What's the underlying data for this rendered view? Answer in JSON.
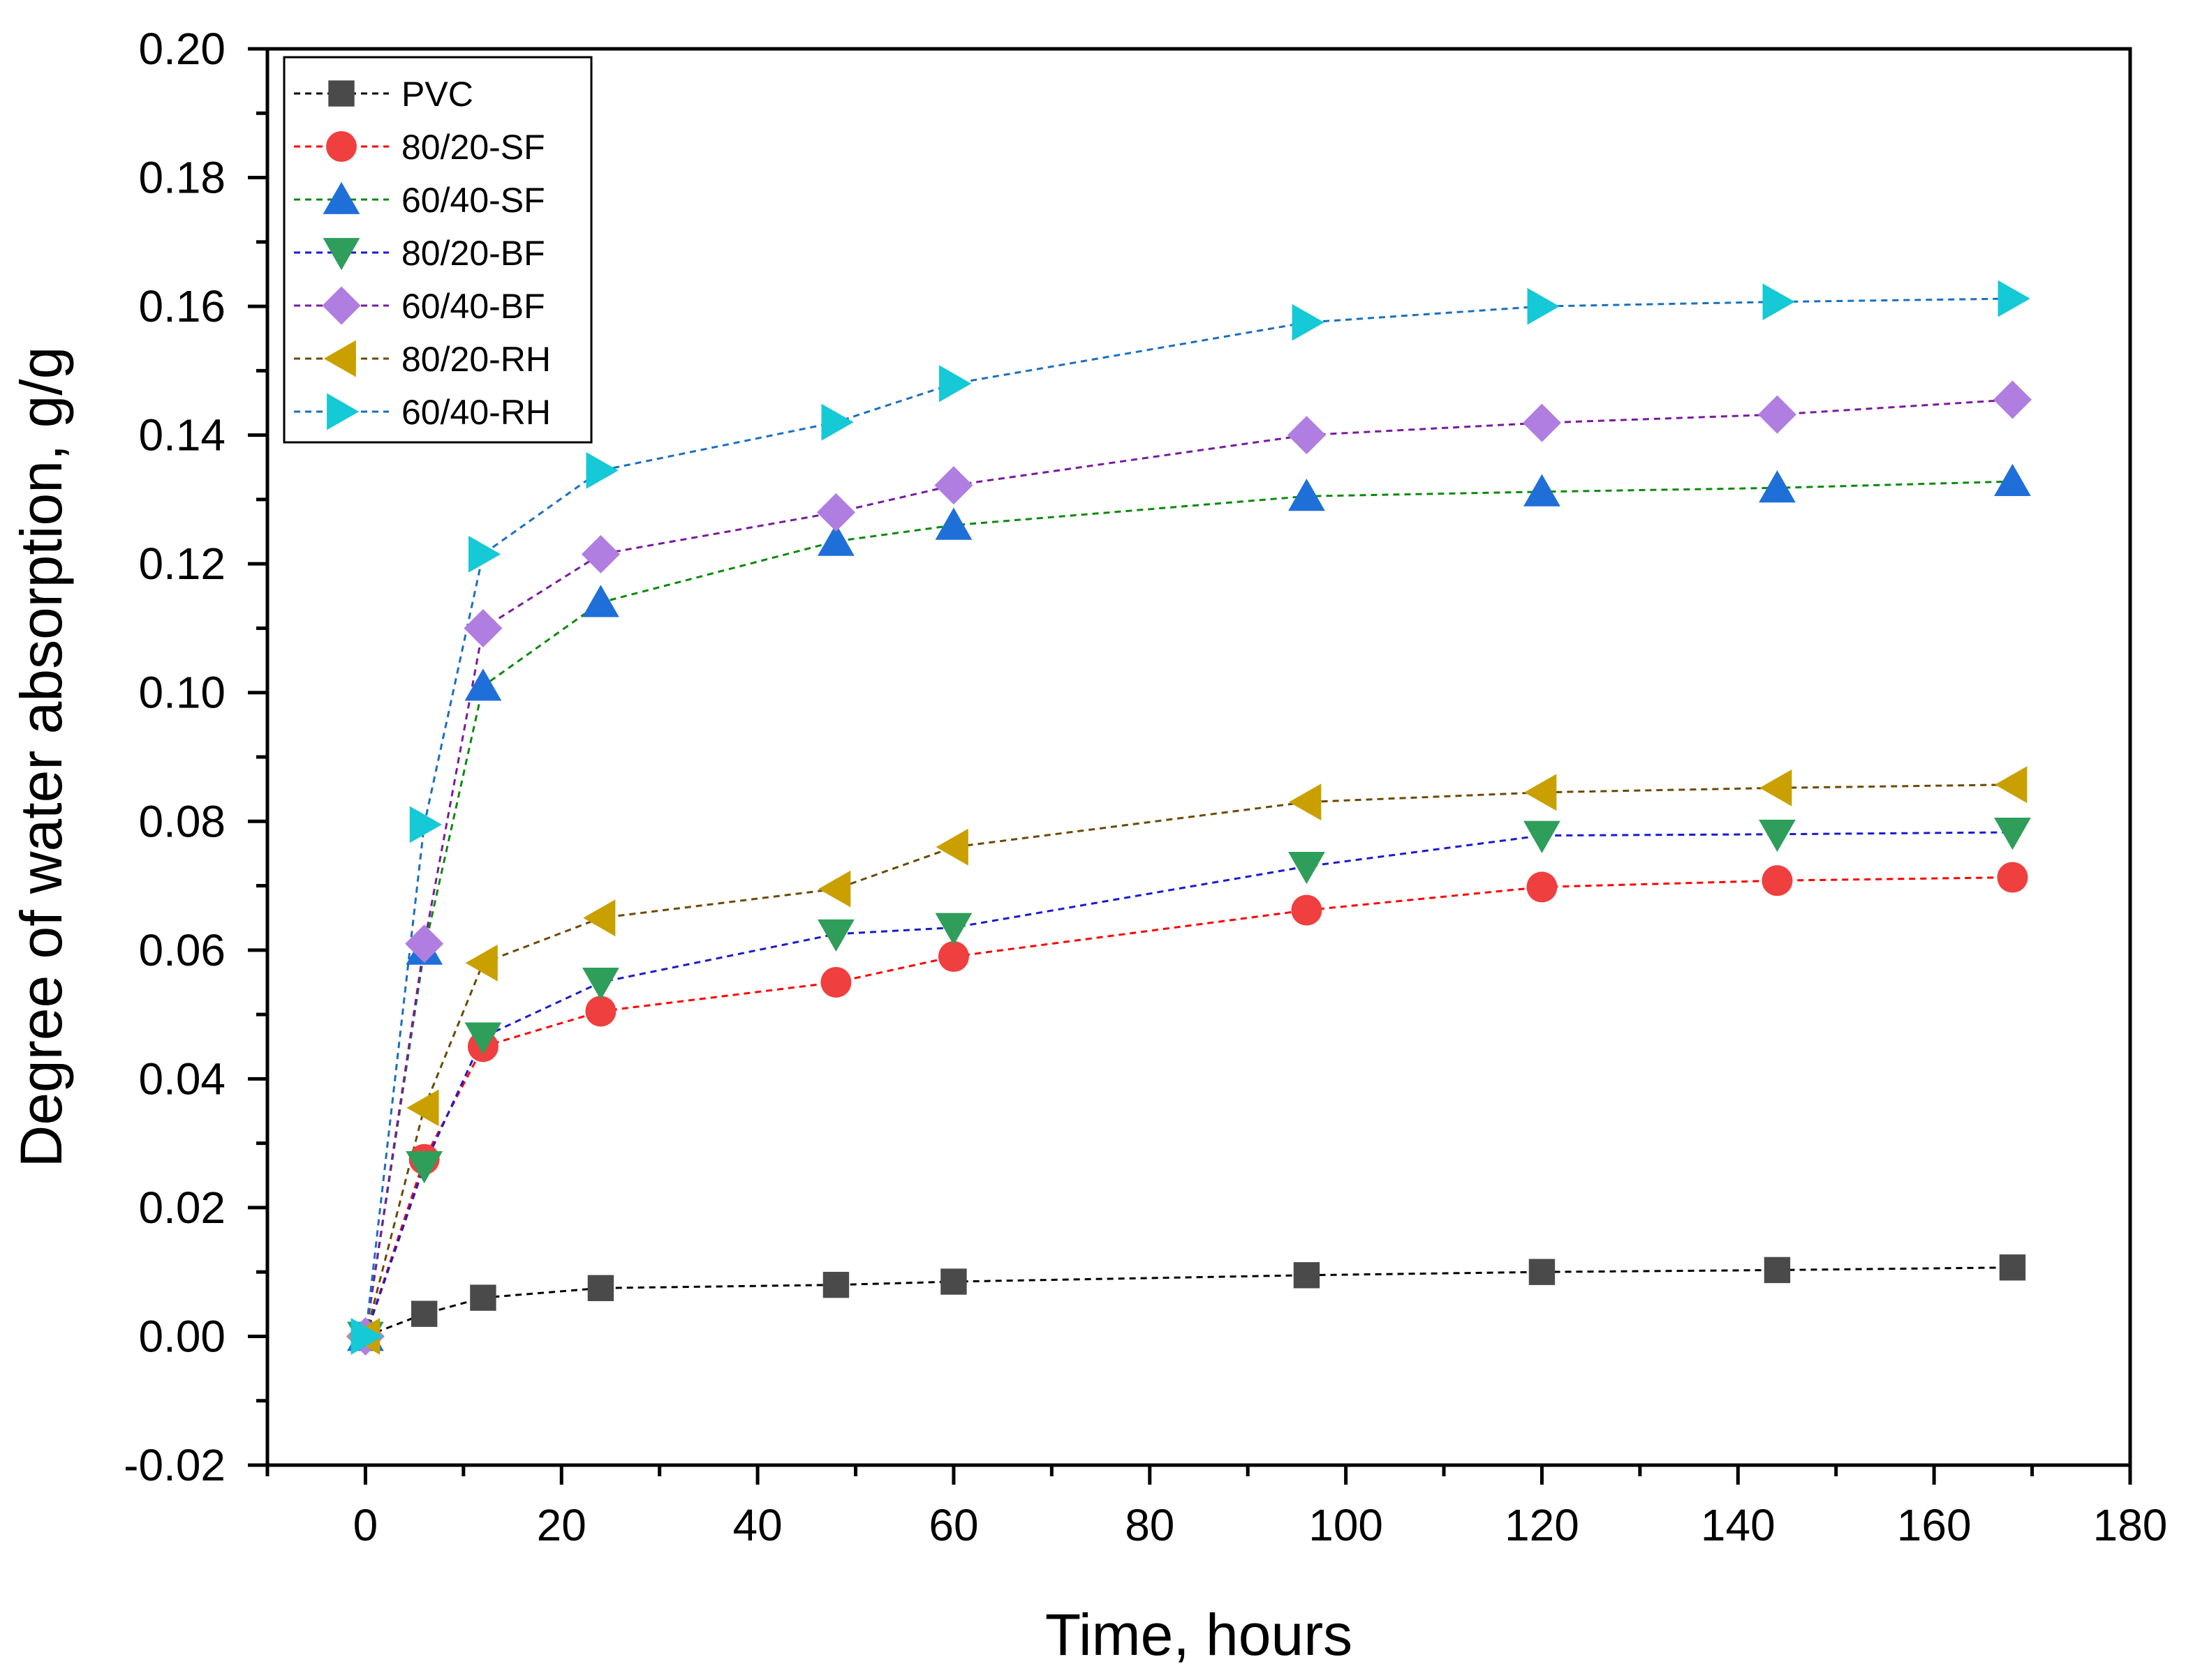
{
  "chart_data": {
    "type": "line",
    "title": "",
    "xlabel": "Time, hours",
    "ylabel": "Degree of water absorption, g/g",
    "xlim": [
      -10,
      180
    ],
    "ylim": [
      -0.02,
      0.2
    ],
    "xticks": [
      0,
      20,
      40,
      60,
      80,
      100,
      120,
      140,
      160,
      180
    ],
    "xtick_labels": [
      "0",
      "20",
      "40",
      "60",
      "80",
      "100",
      "120",
      "140",
      "160",
      "180"
    ],
    "yticks": [
      -0.02,
      0.0,
      0.02,
      0.04,
      0.06,
      0.08,
      0.1,
      0.12,
      0.14,
      0.16,
      0.18,
      0.2
    ],
    "ytick_labels": [
      "-0.02",
      "0.00",
      "0.02",
      "0.04",
      "0.06",
      "0.08",
      "0.10",
      "0.12",
      "0.14",
      "0.16",
      "0.18",
      "0.20"
    ],
    "grid": false,
    "legend_position": "top-left",
    "x": [
      0,
      6,
      12,
      24,
      48,
      60,
      96,
      120,
      144,
      168
    ],
    "series": [
      {
        "name": "PVC",
        "marker": "square",
        "color": "#4a4a4a",
        "line_color": "#000000",
        "values": [
          0,
          0.0035,
          0.006,
          0.0075,
          0.008,
          0.0085,
          0.0095,
          0.01,
          0.0103,
          0.0107
        ]
      },
      {
        "name": "80/20-SF",
        "marker": "circle",
        "color": "#ef3f3f",
        "line_color": "#ff0000",
        "values": [
          0,
          0.0275,
          0.045,
          0.0505,
          0.055,
          0.059,
          0.0662,
          0.0698,
          0.0708,
          0.0713
        ]
      },
      {
        "name": "60/40-SF",
        "marker": "triangle-up",
        "color": "#1f6fd8",
        "line_color": "#0a8a0a",
        "values": [
          0,
          0.06,
          0.101,
          0.114,
          0.1235,
          0.126,
          0.1305,
          0.1312,
          0.1318,
          0.1328
        ]
      },
      {
        "name": "80/20-BF",
        "marker": "triangle-down",
        "color": "#2e9e5a",
        "line_color": "#1a1ad0",
        "values": [
          0,
          0.0265,
          0.0465,
          0.055,
          0.0625,
          0.0635,
          0.073,
          0.0778,
          0.078,
          0.0783
        ]
      },
      {
        "name": "60/40-BF",
        "marker": "diamond",
        "color": "#b07ee0",
        "line_color": "#7a1aa0",
        "values": [
          0,
          0.061,
          0.11,
          0.1215,
          0.128,
          0.1322,
          0.14,
          0.1419,
          0.1432,
          0.1455
        ]
      },
      {
        "name": "80/20-RH",
        "marker": "triangle-left",
        "color": "#c9a000",
        "line_color": "#6b4a00",
        "values": [
          0,
          0.0355,
          0.058,
          0.065,
          0.0695,
          0.076,
          0.083,
          0.0845,
          0.0852,
          0.0857
        ]
      },
      {
        "name": "60/40-RH",
        "marker": "triangle-right",
        "color": "#15c9d6",
        "line_color": "#1a6fc0",
        "values": [
          0,
          0.0795,
          0.1215,
          0.1345,
          0.142,
          0.148,
          0.1575,
          0.16,
          0.1607,
          0.1612
        ]
      }
    ]
  }
}
